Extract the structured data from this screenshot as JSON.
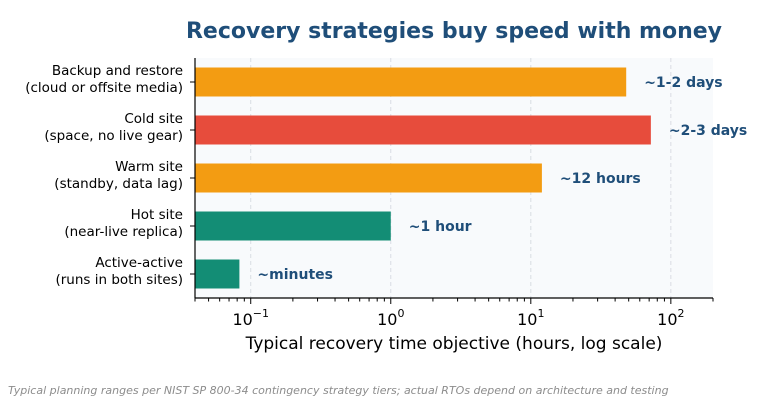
{
  "chart_data": {
    "type": "bar",
    "orientation": "horizontal",
    "title": "Recovery strategies buy speed with money",
    "xlabel": "Typical recovery time objective (hours, log scale)",
    "ylabel": "",
    "xscale": "log",
    "xlim": [
      0.04,
      200
    ],
    "grid": true,
    "categories": [
      [
        "Backup and restore",
        "(cloud or offsite media)"
      ],
      [
        "Cold site",
        "(space, no live gear)"
      ],
      [
        "Warm site",
        "(standby, data lag)"
      ],
      [
        "Hot site",
        "(near-live replica)"
      ],
      [
        "Active-active",
        "(runs in both sites)"
      ]
    ],
    "values": [
      48,
      72,
      12,
      1,
      0.083
    ],
    "data_labels": [
      "~1-2 days",
      "~2-3 days",
      "~12 hours",
      "~1 hour",
      "~minutes"
    ],
    "bar_colors": [
      "#f39c12",
      "#e74c3c",
      "#f39c12",
      "#138d75",
      "#138d75"
    ],
    "x_ticks": [
      {
        "value": 0.1,
        "base": "10",
        "exp": "−1"
      },
      {
        "value": 1,
        "base": "10",
        "exp": "0"
      },
      {
        "value": 10,
        "base": "10",
        "exp": "1"
      },
      {
        "value": 100,
        "base": "10",
        "exp": "2"
      }
    ]
  },
  "footnote": "Typical planning ranges per NIST SP 800-34 contingency strategy tiers; actual RTOs depend on architecture and testing",
  "colors": {
    "title": "#1f4e79",
    "data_label": "#1f4e79",
    "plot_background": "#f8fafc"
  }
}
